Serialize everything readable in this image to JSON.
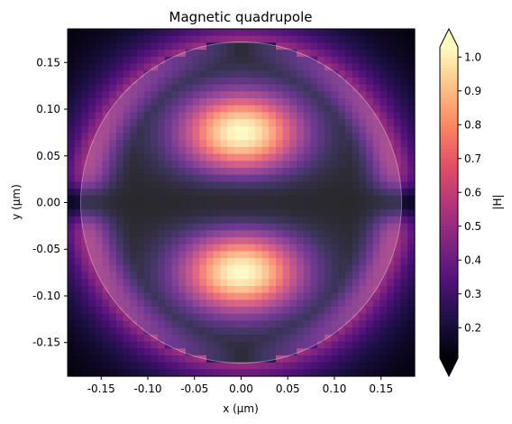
{
  "chart_data": {
    "type": "heatmap",
    "title": "Magnetic quadrupole",
    "xlabel": "x (µm)",
    "ylabel": "y (µm)",
    "xlim": [
      -0.186,
      0.186
    ],
    "ylim": [
      -0.186,
      0.186
    ],
    "x_ticks": [
      -0.15,
      -0.1,
      -0.05,
      0.0,
      0.05,
      0.1,
      0.15
    ],
    "x_tick_labels": [
      "-0.15",
      "-0.10",
      "-0.05",
      "0.00",
      "0.05",
      "0.10",
      "0.15"
    ],
    "y_ticks": [
      0.15,
      0.1,
      0.05,
      0.0,
      -0.05,
      -0.1,
      -0.15
    ],
    "y_tick_labels": [
      "0.15",
      "0.10",
      "0.05",
      "0.00",
      "-0.05",
      "-0.10",
      "-0.15"
    ],
    "colorbar": {
      "label": "|H|",
      "range": [
        0.11,
        1.03
      ],
      "ticks": [
        0.2,
        0.3,
        0.4,
        0.5,
        0.6,
        0.7,
        0.8,
        0.9,
        1.0
      ],
      "tick_labels": [
        "0.2",
        "0.3",
        "0.4",
        "0.5",
        "0.6",
        "0.7",
        "0.8",
        "0.9",
        "1.0"
      ],
      "extend": "both",
      "colormap": "magma"
    },
    "field": {
      "grid_size": 50,
      "lobes": [
        {
          "x": 0.0,
          "y": 0.075,
          "peak": 1.0
        },
        {
          "x": 0.0,
          "y": -0.075,
          "peak": 1.0
        }
      ],
      "nodal_line_y": 0.0,
      "min_value": 0.11
    },
    "overlay": {
      "shape": "circle",
      "center": [
        0.0,
        0.0
      ],
      "radius": 0.172,
      "color": "#ffffff",
      "opacity": 0.16
    }
  }
}
